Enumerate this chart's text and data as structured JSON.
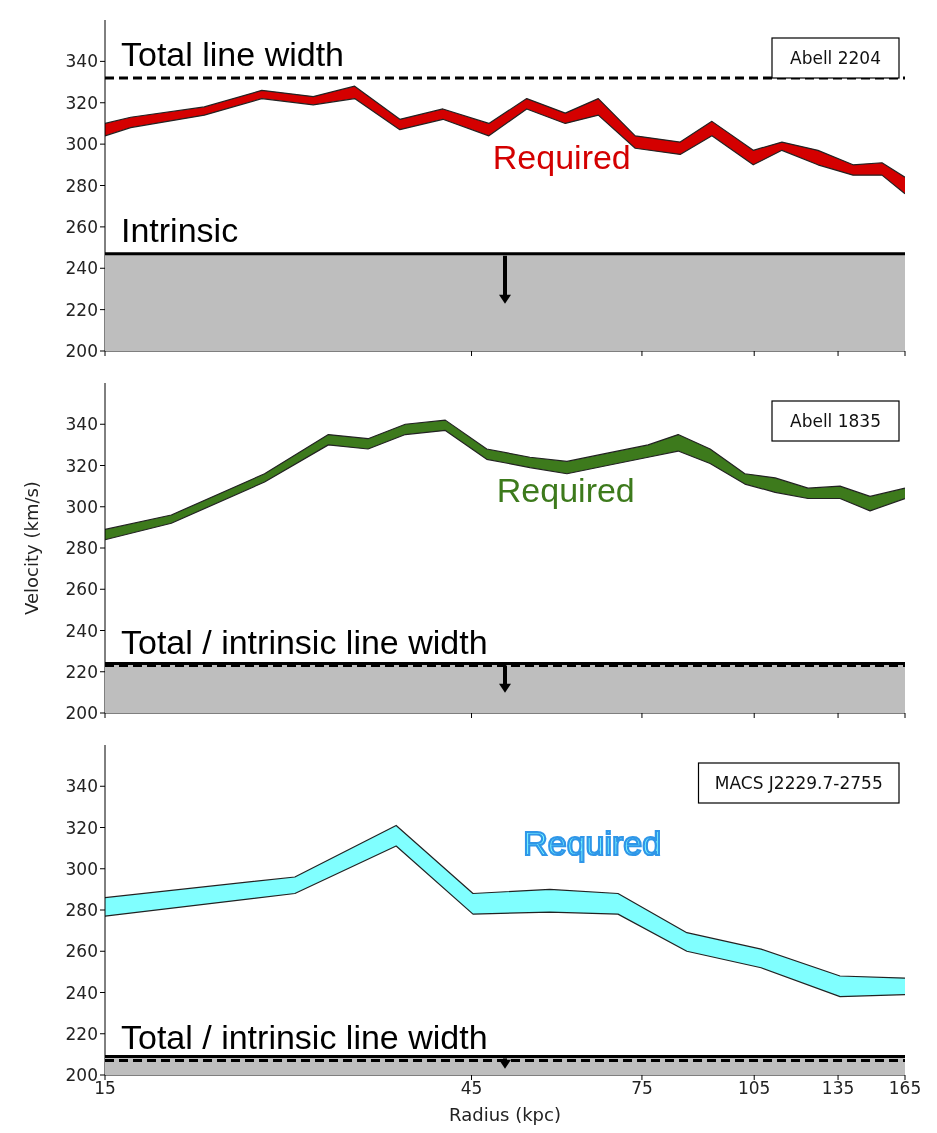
{
  "chart_data": [
    {
      "type": "area",
      "series": [
        {
          "name": "Required",
          "color": "#d40000",
          "x": [
            15,
            16.2,
            20.2,
            24.0,
            28.0,
            31.7,
            36.3,
            41.3,
            47.4,
            53.1,
            59.6,
            65.8,
            73.5,
            84.1,
            92.5,
            104.7,
            114.1,
            127.1,
            141.2,
            154,
            165
          ],
          "values": [
            310,
            313,
            318,
            326,
            323,
            328,
            312,
            317,
            310,
            322,
            315,
            322,
            304,
            301,
            311,
            297,
            301,
            297,
            290,
            291,
            284
          ]
        },
        {
          "color": "#ffffff",
          "x": [
            15,
            16.2,
            20.2,
            24.0,
            28.0,
            31.7,
            36.3,
            41.3,
            47.4,
            53.1,
            59.6,
            65.8,
            73.5,
            84.1,
            92.5,
            104.7,
            114.1,
            127.1,
            141.2,
            154,
            165
          ],
          "values": [
            304,
            308,
            314,
            322,
            319,
            322,
            307,
            312,
            304,
            317,
            310,
            314,
            298,
            295,
            304,
            290,
            297,
            290,
            285,
            285,
            276
          ]
        }
      ],
      "xlim": [
        15,
        165
      ],
      "xticks": [
        15,
        45,
        75,
        105,
        135,
        165
      ],
      "ylim": [
        200,
        360
      ],
      "yticks": [
        200,
        220,
        240,
        260,
        280,
        300,
        320,
        340
      ],
      "log": "x",
      "tick_labels": "y",
      "ref_lines": [
        {
          "axis": "y",
          "value": 332,
          "label": "Total line width",
          "line_style": "dashed",
          "color": "#000000"
        },
        {
          "axis": "y",
          "value": 247,
          "label": "Intrinsic",
          "line_style": "solid",
          "color": "#000000"
        }
      ],
      "bands": [
        {
          "axis": "y",
          "from": 200,
          "to": 247,
          "color": "#bebebe"
        }
      ],
      "annotations": [
        "Abell 2204"
      ]
    },
    {
      "type": "area",
      "series": [
        {
          "name": "Required",
          "color": "#3d7a1c",
          "x": [
            15,
            18.3,
            24.2,
            29.3,
            33.0,
            36.9,
            41.6,
            47.1,
            53.6,
            59.9,
            67.6,
            76.4,
            83.6,
            92.0,
            102.1,
            111.8,
            123.4,
            135.8,
            148.6,
            165
          ],
          "values": [
            289,
            296,
            316,
            335,
            333,
            340,
            342,
            328,
            324,
            322,
            326,
            330,
            335,
            328,
            316,
            314,
            309,
            310,
            305,
            309
          ]
        },
        {
          "color": "#ffffff",
          "x": [
            15,
            18.3,
            24.2,
            29.3,
            33.0,
            36.9,
            41.6,
            47.1,
            53.6,
            59.9,
            67.6,
            76.4,
            83.6,
            92.0,
            102.1,
            111.8,
            123.4,
            135.8,
            148.6,
            165
          ],
          "values": [
            284,
            292,
            312,
            330,
            328,
            335,
            337,
            323,
            319,
            316,
            320,
            324,
            327,
            321,
            311,
            307,
            304,
            304,
            298,
            304
          ]
        }
      ],
      "xlim": [
        15,
        165
      ],
      "xticks": [
        15,
        45,
        75,
        105,
        135,
        165
      ],
      "ylim": [
        200,
        360
      ],
      "yticks": [
        200,
        220,
        240,
        260,
        280,
        300,
        320,
        340
      ],
      "log": "x",
      "tick_labels": "y",
      "ylabel": "Velocity (km/s)",
      "ref_lines": [
        {
          "axis": "y",
          "value": 223,
          "label": "Total / intrinsic line width",
          "line_style": "dashed",
          "color": "#000000"
        },
        {
          "axis": "y",
          "value": 224,
          "line_style": "solid",
          "color": "#000000"
        }
      ],
      "bands": [
        {
          "axis": "y",
          "from": 200,
          "to": 224,
          "color": "#bebebe"
        }
      ],
      "annotations": [
        "Abell 1835"
      ]
    },
    {
      "type": "area",
      "series": [
        {
          "name": "Required",
          "color": "#80ffff",
          "x": [
            15,
            26.5,
            35.9,
            45.2,
            56.9,
            69.8,
            85.8,
            107.2,
            135.8,
            165
          ],
          "values": [
            286,
            296,
            321,
            288,
            290,
            288,
            269,
            261,
            248,
            247
          ]
        },
        {
          "color": "#ffffff",
          "x": [
            15,
            26.5,
            35.9,
            45.2,
            56.9,
            69.8,
            85.8,
            107.2,
            135.8,
            165
          ],
          "values": [
            277,
            288,
            311,
            278,
            279,
            278,
            260,
            252,
            238,
            239
          ]
        }
      ],
      "xlim": [
        15,
        165
      ],
      "xticks": [
        15,
        45,
        75,
        105,
        135,
        165
      ],
      "ylim": [
        200,
        360
      ],
      "yticks": [
        200,
        220,
        240,
        260,
        280,
        300,
        320,
        340
      ],
      "log": "x",
      "xlabel": "Radius (kpc)",
      "ref_lines": [
        {
          "axis": "y",
          "value": 207,
          "label": "Total / intrinsic line width",
          "line_style": "dashed",
          "color": "#000000"
        },
        {
          "axis": "y",
          "value": 209,
          "line_style": "solid",
          "color": "#000000"
        }
      ],
      "bands": [
        {
          "axis": "y",
          "from": 200,
          "to": 209,
          "color": "#bebebe"
        }
      ],
      "annotations": [
        "MACS J2229.7-2755"
      ]
    }
  ]
}
